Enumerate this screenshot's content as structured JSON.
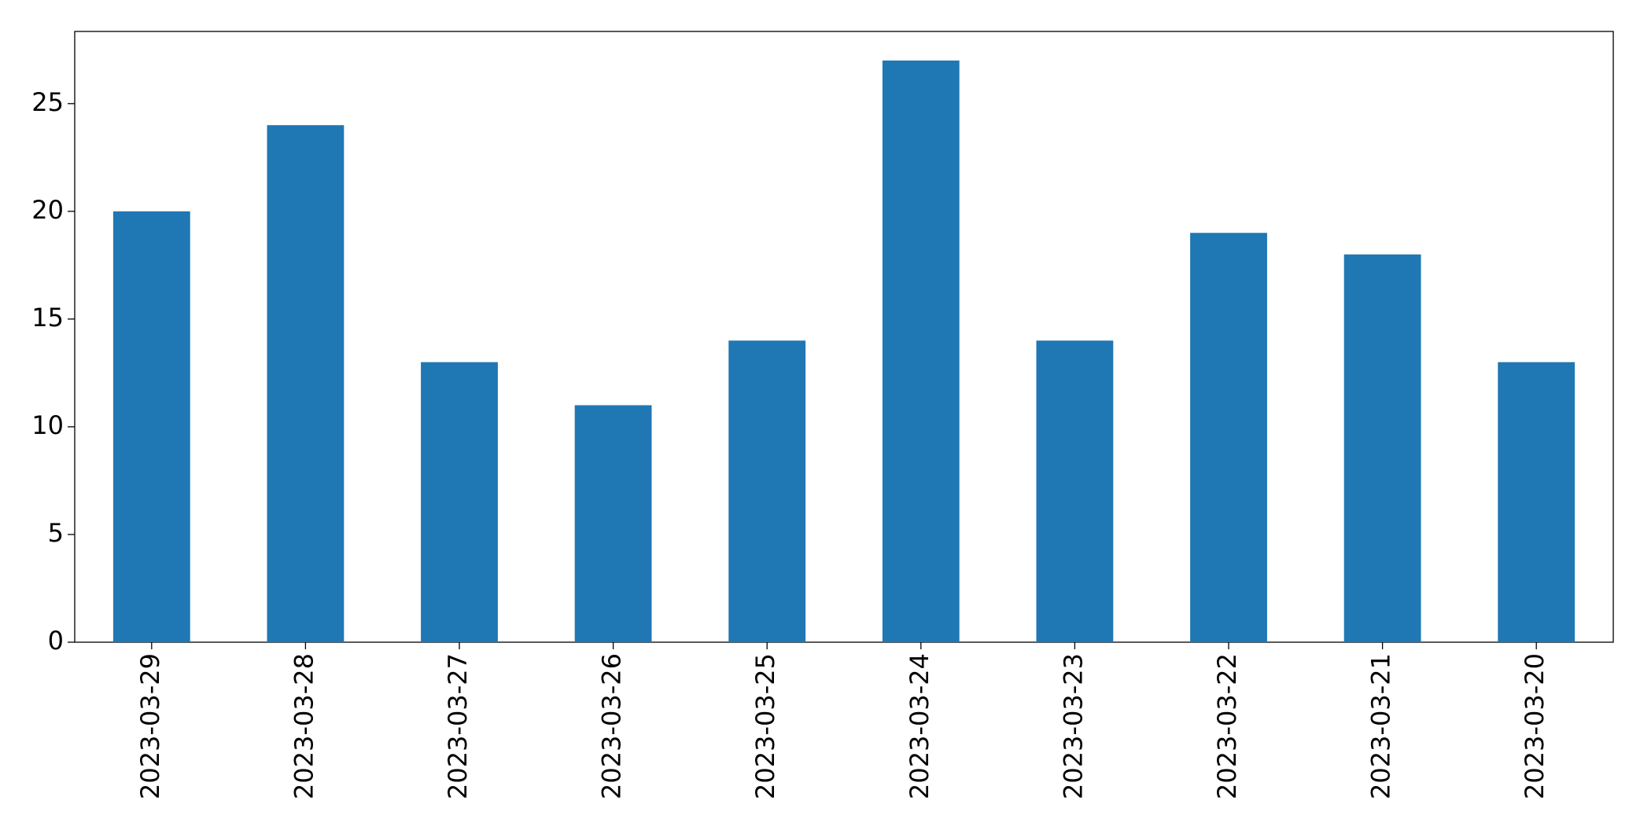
{
  "chart_data": {
    "type": "bar",
    "categories": [
      "2023-03-29",
      "2023-03-28",
      "2023-03-27",
      "2023-03-26",
      "2023-03-25",
      "2023-03-24",
      "2023-03-23",
      "2023-03-22",
      "2023-03-21",
      "2023-03-20"
    ],
    "values": [
      20,
      24,
      13,
      11,
      14,
      27,
      14,
      19,
      18,
      13
    ],
    "color": "#1f77b4",
    "ylim": [
      0,
      28.35
    ],
    "yticks": [
      0,
      5,
      10,
      15,
      20,
      25
    ],
    "grid": false
  }
}
